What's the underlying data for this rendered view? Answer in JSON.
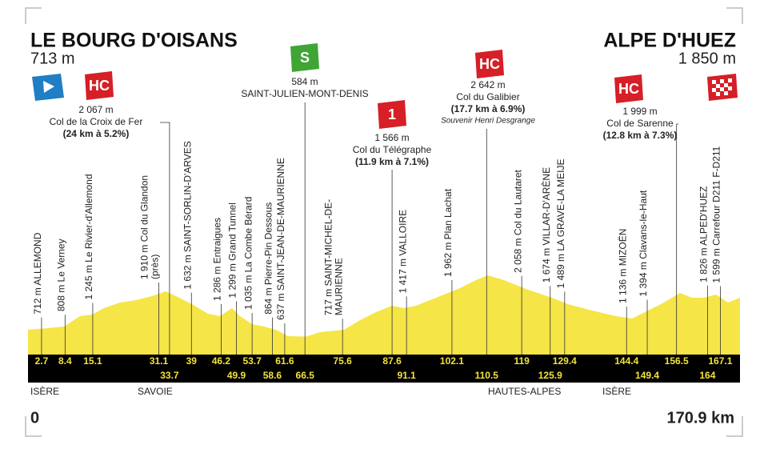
{
  "start": {
    "name": "LE BOURG D'OISANS",
    "altitude": "713 m"
  },
  "finish": {
    "name": "ALPE D'HUEZ",
    "altitude": "1 850 m"
  },
  "points": [
    {
      "km": 2.7,
      "lines": [
        "712 m ALLEMOND"
      ]
    },
    {
      "km": 8.4,
      "lines": [
        "808 m Le Verney"
      ]
    },
    {
      "km": 15.1,
      "lines": [
        "1 245 m Le Rivier-d'Allemond"
      ]
    },
    {
      "km": 31.1,
      "lines": [
        "1 910 m Col du Glandon",
        "(près)"
      ]
    },
    {
      "km": 33.7,
      "climb": {
        "category": "HC",
        "altitude": "2 067 m",
        "name": "Col de la Croix de Fer",
        "detail": "(24 km à 5.2%)"
      }
    },
    {
      "km": 39,
      "lines": [
        "1 632 m SAINT-SORLIN-D'ARVES"
      ]
    },
    {
      "km": 46.2,
      "lines": [
        "1 286 m Entraigues"
      ]
    },
    {
      "km": 49.9,
      "lines": [
        "1 299 m Grand Tunnel"
      ]
    },
    {
      "km": 53.7,
      "lines": [
        "1 035 m La Combe Bérard"
      ]
    },
    {
      "km": 58.6,
      "lines": [
        "864 m Pierre-Pin Dessous"
      ]
    },
    {
      "km": 61.6,
      "lines": [
        "637 m SAINT-JEAN-DE-MAURIENNE"
      ]
    },
    {
      "km": 66.5,
      "climb": {
        "category": "S",
        "altitude": "584 m",
        "name": "SAINT-JULIEN-MONT-DENIS"
      }
    },
    {
      "km": 75.6,
      "lines": [
        "717 m SAINT-MICHEL-DE-",
        "MAURIENNE"
      ]
    },
    {
      "km": 87.6,
      "climb": {
        "category": "1",
        "altitude": "1 566 m",
        "name": "Col du Télégraphe",
        "detail": "(11.9 km à 7.1%)"
      }
    },
    {
      "km": 91.1,
      "lines": [
        "1 417 m VALLOIRE"
      ]
    },
    {
      "km": 102.1,
      "lines": [
        "1 962 m Plan Lachat"
      ]
    },
    {
      "km": 110.5,
      "climb": {
        "category": "HC",
        "altitude": "2 642 m",
        "name": "Col du Galibier",
        "detail": "(17.7 km à 6.9%)",
        "note": "Souvenir Henri Desgrange"
      }
    },
    {
      "km": 119,
      "lines": [
        "2 058 m Col du Lautaret"
      ]
    },
    {
      "km": 125.9,
      "lines": [
        "1 674 m VILLAR-D'ARÈNE"
      ]
    },
    {
      "km": 129.4,
      "lines": [
        "1 489 m LA GRAVE-LA MEIJE"
      ]
    },
    {
      "km": 144.4,
      "lines": [
        "1 136 m MIZOËN"
      ]
    },
    {
      "km": 149.4,
      "lines": [
        "1 394 m Clavans-le-Haut"
      ]
    },
    {
      "km": 156.5,
      "climb": {
        "category": "HC",
        "altitude": "1 999 m",
        "name": "Col de Sarenne",
        "detail": "(12.8 km à 7.3%)"
      }
    },
    {
      "km": 164,
      "lines": [
        "1 826 m ALPED'HUEZ"
      ]
    },
    {
      "km": 167.1,
      "lines": [
        "1 599 m Carrefour D211 F-D211"
      ]
    }
  ],
  "regions": [
    "ISÈRE",
    "SAVOIE",
    "HAUTES-ALPES",
    "ISÈRE"
  ],
  "distance": {
    "start": 0,
    "end": {
      "km": 170.9,
      "label": "170.9 km"
    }
  }
}
